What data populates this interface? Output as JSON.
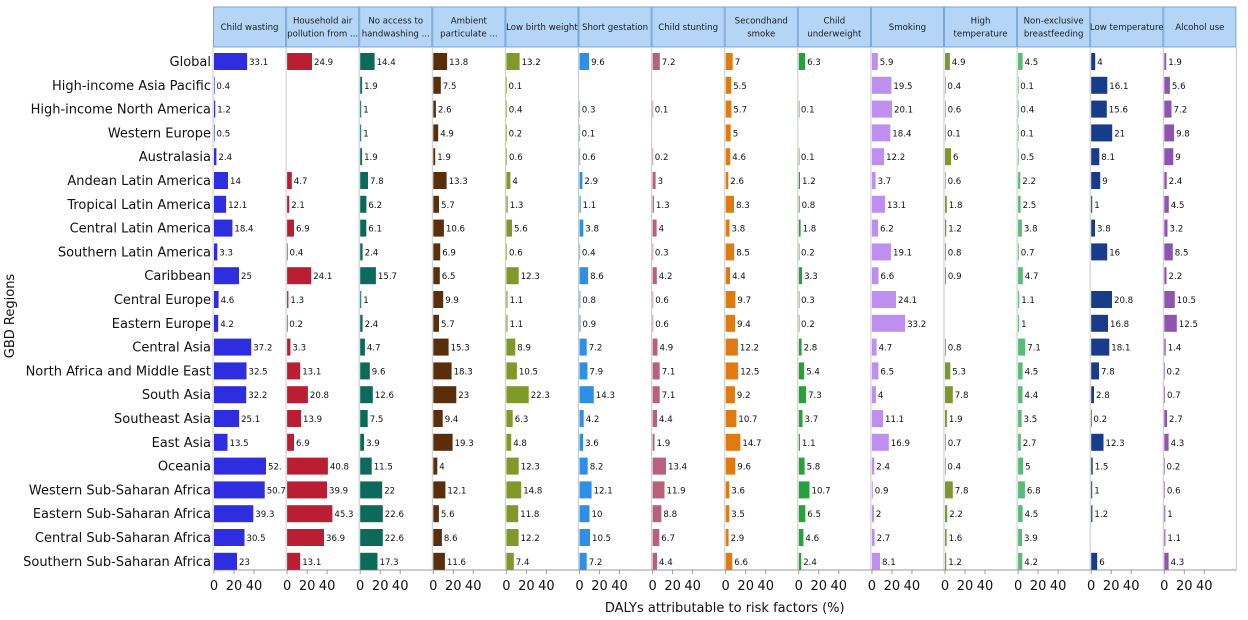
{
  "chart_data": {
    "type": "bar",
    "orientation": "horizontal",
    "xlabel": "DALYs attributable to risk factors (%)",
    "ylabel": "GBD Regions",
    "xlim": [
      0,
      50
    ],
    "xticks": [
      "0",
      "20",
      "40"
    ],
    "categories": [
      "Global",
      "High-income Asia Pacific",
      "High-income North America",
      "Western Europe",
      "Australasia",
      "Andean Latin America",
      "Tropical Latin America",
      "Central Latin America",
      "Southern Latin America",
      "Caribbean",
      "Central Europe",
      "Eastern Europe",
      "Central Asia",
      "North Africa and Middle East",
      "South Asia",
      "Southeast Asia",
      "East Asia",
      "Oceania",
      "Western Sub-Saharan Africa",
      "Eastern Sub-Saharan Africa",
      "Central Sub-Saharan Africa",
      "Southern Sub-Saharan Africa"
    ],
    "series": [
      {
        "name": "Child wasting",
        "color": "#2e2ee0",
        "values": [
          33.1,
          0.4,
          1.2,
          0.5,
          2.4,
          14,
          12.1,
          18.4,
          3.3,
          25,
          4.6,
          4.2,
          37.2,
          32.5,
          32.2,
          25.1,
          13.5,
          52,
          50.7,
          39.3,
          30.5,
          23
        ],
        "labels": [
          "33.1",
          "0.4",
          "1.2",
          "0.5",
          "2.4",
          "14",
          "12.1",
          "18.4",
          "3.3",
          "25",
          "4.6",
          "4.2",
          "37.2",
          "32.5",
          "32.2",
          "25.1",
          "13.5",
          "52.",
          "50.7",
          "39.3",
          "30.5",
          "23"
        ]
      },
      {
        "name": "Household air pollution from ...",
        "color": "#bb1e32",
        "values": [
          24.9,
          null,
          null,
          null,
          null,
          4.7,
          2.1,
          6.9,
          0.4,
          24.1,
          1.3,
          0.2,
          3.3,
          13.1,
          20.8,
          13.9,
          6.9,
          40.8,
          39.9,
          45.3,
          36.9,
          13.1
        ],
        "labels": [
          "24.9",
          "",
          "",
          "",
          "",
          "4.7",
          "2.1",
          "6.9",
          "0.4",
          "24.1",
          "1.3",
          "0.2",
          "3.3",
          "13.1",
          "20.8",
          "13.9",
          "6.9",
          "40.8",
          "39.9",
          "45.3",
          "36.9",
          "13.1"
        ]
      },
      {
        "name": "No access to handwashing ...",
        "color": "#0b6a5a",
        "values": [
          14.4,
          1.9,
          1,
          1,
          1.9,
          7.8,
          6.2,
          6.1,
          2.4,
          15.7,
          1,
          2.4,
          4.7,
          9.6,
          12.6,
          7.5,
          3.9,
          11.5,
          22,
          22.6,
          22.6,
          17.3
        ],
        "labels": [
          "14.4",
          "1.9",
          "1",
          "1",
          "1.9",
          "7.8",
          "6.2",
          "6.1",
          "2.4",
          "15.7",
          "1",
          "2.4",
          "4.7",
          "9.6",
          "12.6",
          "7.5",
          "3.9",
          "11.5",
          "22",
          "22.6",
          "22.6",
          "17.3"
        ]
      },
      {
        "name": "Ambient particulate ...",
        "color": "#5a2e0a",
        "values": [
          13.8,
          7.5,
          2.6,
          4.9,
          1.9,
          13.3,
          5.7,
          10.6,
          6.9,
          6.5,
          9.9,
          5.7,
          15.3,
          18.3,
          23,
          9.4,
          19.3,
          4,
          12.1,
          5.6,
          8.6,
          11.6
        ],
        "labels": [
          "13.8",
          "7.5",
          "2.6",
          "4.9",
          "1.9",
          "13.3",
          "5.7",
          "10.6",
          "6.9",
          "6.5",
          "9.9",
          "5.7",
          "15.3",
          "18.3",
          "23",
          "9.4",
          "19.3",
          "4",
          "12.1",
          "5.6",
          "8.6",
          "11.6"
        ]
      },
      {
        "name": "Low birth weight",
        "color": "#7f9a28",
        "values": [
          13.2,
          0.1,
          0.4,
          0.2,
          0.6,
          4,
          1.3,
          5.6,
          0.6,
          12.3,
          1.1,
          1.1,
          8.9,
          10.5,
          22.3,
          6.3,
          4.8,
          12.3,
          14.8,
          11.8,
          12.2,
          7.4
        ],
        "labels": [
          "13.2",
          "0.1",
          "0.4",
          "0.2",
          "0.6",
          "4",
          "1.3",
          "5.6",
          "0.6",
          "12.3",
          "1.1",
          "1.1",
          "8.9",
          "10.5",
          "22.3",
          "6.3",
          "4.8",
          "12.3",
          "14.8",
          "11.8",
          "12.2",
          "7.4"
        ]
      },
      {
        "name": "Short gestation",
        "color": "#2d8fe6",
        "values": [
          9.6,
          null,
          0.3,
          0.1,
          0.6,
          2.9,
          1.1,
          3.8,
          0.4,
          8.6,
          0.8,
          0.9,
          7.2,
          7.9,
          14.3,
          4.2,
          3.6,
          8.2,
          12.1,
          10,
          10.5,
          7.2
        ],
        "labels": [
          "9.6",
          "",
          "0.3",
          "0.1",
          "0.6",
          "2.9",
          "1.1",
          "3.8",
          "0.4",
          "8.6",
          "0.8",
          "0.9",
          "7.2",
          "7.9",
          "14.3",
          "4.2",
          "3.6",
          "8.2",
          "12.1",
          "10",
          "10.5",
          "7.2"
        ]
      },
      {
        "name": "Child stunting",
        "color": "#b8607c",
        "values": [
          7.2,
          null,
          0.1,
          null,
          0.2,
          3,
          1.3,
          4,
          0.3,
          4.2,
          0.6,
          0.6,
          4.9,
          7.1,
          7.1,
          4.4,
          1.9,
          13.4,
          11.9,
          8.8,
          6.7,
          4.4
        ],
        "labels": [
          "7.2",
          "",
          "0.1",
          "",
          "0.2",
          "3",
          "1.3",
          "4",
          "0.3",
          "4.2",
          "0.6",
          "0.6",
          "4.9",
          "7.1",
          "7.1",
          "4.4",
          "1.9",
          "13.4",
          "11.9",
          "8.8",
          "6.7",
          "4.4"
        ]
      },
      {
        "name": "Secondhand smoke",
        "color": "#e07b12",
        "values": [
          7,
          5.5,
          5.7,
          5,
          4.6,
          2.6,
          8.3,
          3.8,
          8.5,
          4.4,
          9.7,
          9.4,
          12.2,
          12.5,
          9.2,
          10.7,
          14.7,
          9.6,
          3.6,
          3.5,
          2.9,
          6.6
        ],
        "labels": [
          "7",
          "5.5",
          "5.7",
          "5",
          "4.6",
          "2.6",
          "8.3",
          "3.8",
          "8.5",
          "4.4",
          "9.7",
          "9.4",
          "12.2",
          "12.5",
          "9.2",
          "10.7",
          "14.7",
          "9.6",
          "3.6",
          "3.5",
          "2.9",
          "6.6"
        ]
      },
      {
        "name": "Child underweight",
        "color": "#25a23a",
        "values": [
          6.3,
          null,
          0.1,
          null,
          0.1,
          1.2,
          0.8,
          1.8,
          0.2,
          3.3,
          0.3,
          0.2,
          2.8,
          5.4,
          7.3,
          3.7,
          1.1,
          5.8,
          10.7,
          6.5,
          4.6,
          2.4
        ],
        "labels": [
          "6.3",
          "",
          "0.1",
          "",
          "0.1",
          "1.2",
          "0.8",
          "1.8",
          "0.2",
          "3.3",
          "0.3",
          "0.2",
          "2.8",
          "5.4",
          "7.3",
          "3.7",
          "1.1",
          "5.8",
          "10.7",
          "6.5",
          "4.6",
          "2.4"
        ]
      },
      {
        "name": "Smoking",
        "color": "#bf8ff0",
        "values": [
          5.9,
          19.5,
          20.1,
          18.4,
          12.2,
          3.7,
          13.1,
          6.2,
          19.1,
          6.6,
          24.1,
          33.2,
          4.7,
          6.5,
          4,
          11.1,
          16.9,
          2.4,
          0.9,
          2,
          2.7,
          8.1
        ],
        "labels": [
          "5.9",
          "19.5",
          "20.1",
          "18.4",
          "12.2",
          "3.7",
          "13.1",
          "6.2",
          "19.1",
          "6.6",
          "24.1",
          "33.2",
          "4.7",
          "6.5",
          "4",
          "11.1",
          "16.9",
          "2.4",
          "0.9",
          "2",
          "2.7",
          "8.1"
        ]
      },
      {
        "name": "High temperature",
        "color": "#7a9a2c",
        "values": [
          4.9,
          0.4,
          0.6,
          0.1,
          6,
          0.6,
          1.8,
          1.2,
          0.8,
          0.9,
          null,
          null,
          0.8,
          5.3,
          7.8,
          1.9,
          0.7,
          0.4,
          7.8,
          2.2,
          1.6,
          1.2
        ],
        "labels": [
          "4.9",
          "0.4",
          "0.6",
          "0.1",
          "6",
          "0.6",
          "1.8",
          "1.2",
          "0.8",
          "0.9",
          "",
          "",
          "0.8",
          "5.3",
          "7.8",
          "1.9",
          "0.7",
          "0.4",
          "7.8",
          "2.2",
          "1.6",
          "1.2"
        ]
      },
      {
        "name": "Non-exclusive breastfeeding",
        "color": "#5cba78",
        "values": [
          4.5,
          0.1,
          0.4,
          0.1,
          0.5,
          2.2,
          2.5,
          3.8,
          0.7,
          4.7,
          1.1,
          1,
          7.1,
          4.5,
          4.4,
          3.5,
          2.7,
          5,
          6.8,
          4.5,
          3.9,
          4.2
        ],
        "labels": [
          "4.5",
          "0.1",
          "0.4",
          "0.1",
          "0.5",
          "2.2",
          "2.5",
          "3.8",
          "0.7",
          "4.7",
          "1.1",
          "1",
          "7.1",
          "4.5",
          "4.4",
          "3.5",
          "2.7",
          "5",
          "6.8",
          "4.5",
          "3.9",
          "4.2"
        ]
      },
      {
        "name": "Low temperature",
        "color": "#163c8a",
        "values": [
          4,
          16.1,
          15.6,
          21,
          8.1,
          9,
          1,
          3.8,
          16,
          null,
          20.8,
          16.8,
          18.1,
          7.8,
          2.8,
          0.2,
          12.3,
          1.5,
          1,
          1.2,
          null,
          6
        ],
        "labels": [
          "4",
          "16.1",
          "15.6",
          "21",
          "8.1",
          "9",
          "1",
          "3.8",
          "16",
          "",
          "20.8",
          "16.8",
          "18.1",
          "7.8",
          "2.8",
          "0.2",
          "12.3",
          "1.5",
          "1",
          "1.2",
          "",
          "6"
        ]
      },
      {
        "name": "Alcohol use",
        "color": "#8e55b0",
        "values": [
          1.9,
          5.6,
          7.2,
          9.8,
          9,
          2.4,
          4.5,
          3.2,
          8.5,
          2.2,
          10.5,
          12.5,
          1.4,
          0.2,
          0.7,
          2.7,
          4.3,
          0.2,
          0.6,
          1,
          1.1,
          4.3
        ],
        "labels": [
          "1.9",
          "5.6",
          "7.2",
          "9.8",
          "9",
          "2.4",
          "4.5",
          "3.2",
          "8.5",
          "2.2",
          "10.5",
          "12.5",
          "1.4",
          "0.2",
          "0.7",
          "2.7",
          "4.3",
          "0.2",
          "0.6",
          "1",
          "1.1",
          "4.3"
        ]
      }
    ],
    "panel_headers": [
      [
        "Child wasting"
      ],
      [
        "Household air",
        "pollution from ..."
      ],
      [
        "No access to",
        "handwashing ..."
      ],
      [
        "Ambient",
        "particulate ..."
      ],
      [
        "Low birth weight"
      ],
      [
        "Short gestation"
      ],
      [
        "Child stunting"
      ],
      [
        "Secondhand",
        "smoke"
      ],
      [
        "Child",
        "underweight"
      ],
      [
        "Smoking"
      ],
      [
        "High",
        "temperature"
      ],
      [
        "Non-exclusive",
        "breastfeeding"
      ],
      [
        "Low temperature"
      ],
      [
        "Alcohol use"
      ]
    ],
    "colors": {
      "header_bg": "#b5d5f7",
      "header_border": "#7aa7d8",
      "panel_divider": "#c9c9c9"
    }
  }
}
